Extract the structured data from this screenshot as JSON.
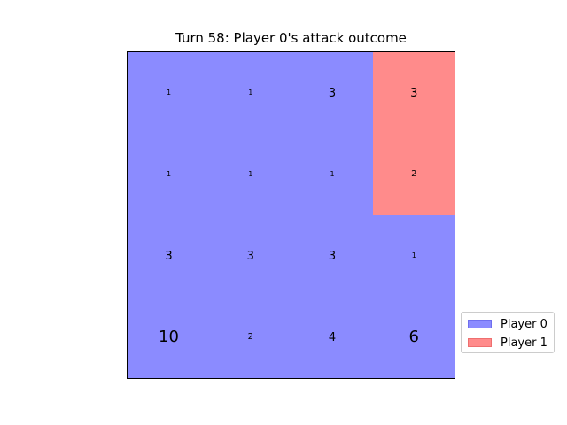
{
  "title": "Turn 58: Player 0's attack outcome",
  "colors": {
    "player0": "#8b8bff",
    "player0_edge": "#6f6fee",
    "player1": "#ff8b8b",
    "player1_edge": "#ee6f6f"
  },
  "legend": [
    {
      "label": "Player 0",
      "owner": 0
    },
    {
      "label": "Player 1",
      "owner": 1
    }
  ],
  "board": {
    "rows": 4,
    "cols": 4,
    "cells": [
      [
        {
          "owner": 0,
          "troops": "1"
        },
        {
          "owner": 0,
          "troops": "1"
        },
        {
          "owner": 0,
          "troops": "3"
        },
        {
          "owner": 1,
          "troops": "3"
        }
      ],
      [
        {
          "owner": 0,
          "troops": "1"
        },
        {
          "owner": 0,
          "troops": "1"
        },
        {
          "owner": 0,
          "troops": "1"
        },
        {
          "owner": 1,
          "troops": "2"
        }
      ],
      [
        {
          "owner": 0,
          "troops": "3"
        },
        {
          "owner": 0,
          "troops": "3"
        },
        {
          "owner": 0,
          "troops": "3"
        },
        {
          "owner": 0,
          "troops": "1"
        }
      ],
      [
        {
          "owner": 0,
          "troops": "10"
        },
        {
          "owner": 0,
          "troops": "2"
        },
        {
          "owner": 0,
          "troops": "4"
        },
        {
          "owner": 0,
          "troops": "6"
        }
      ]
    ]
  }
}
